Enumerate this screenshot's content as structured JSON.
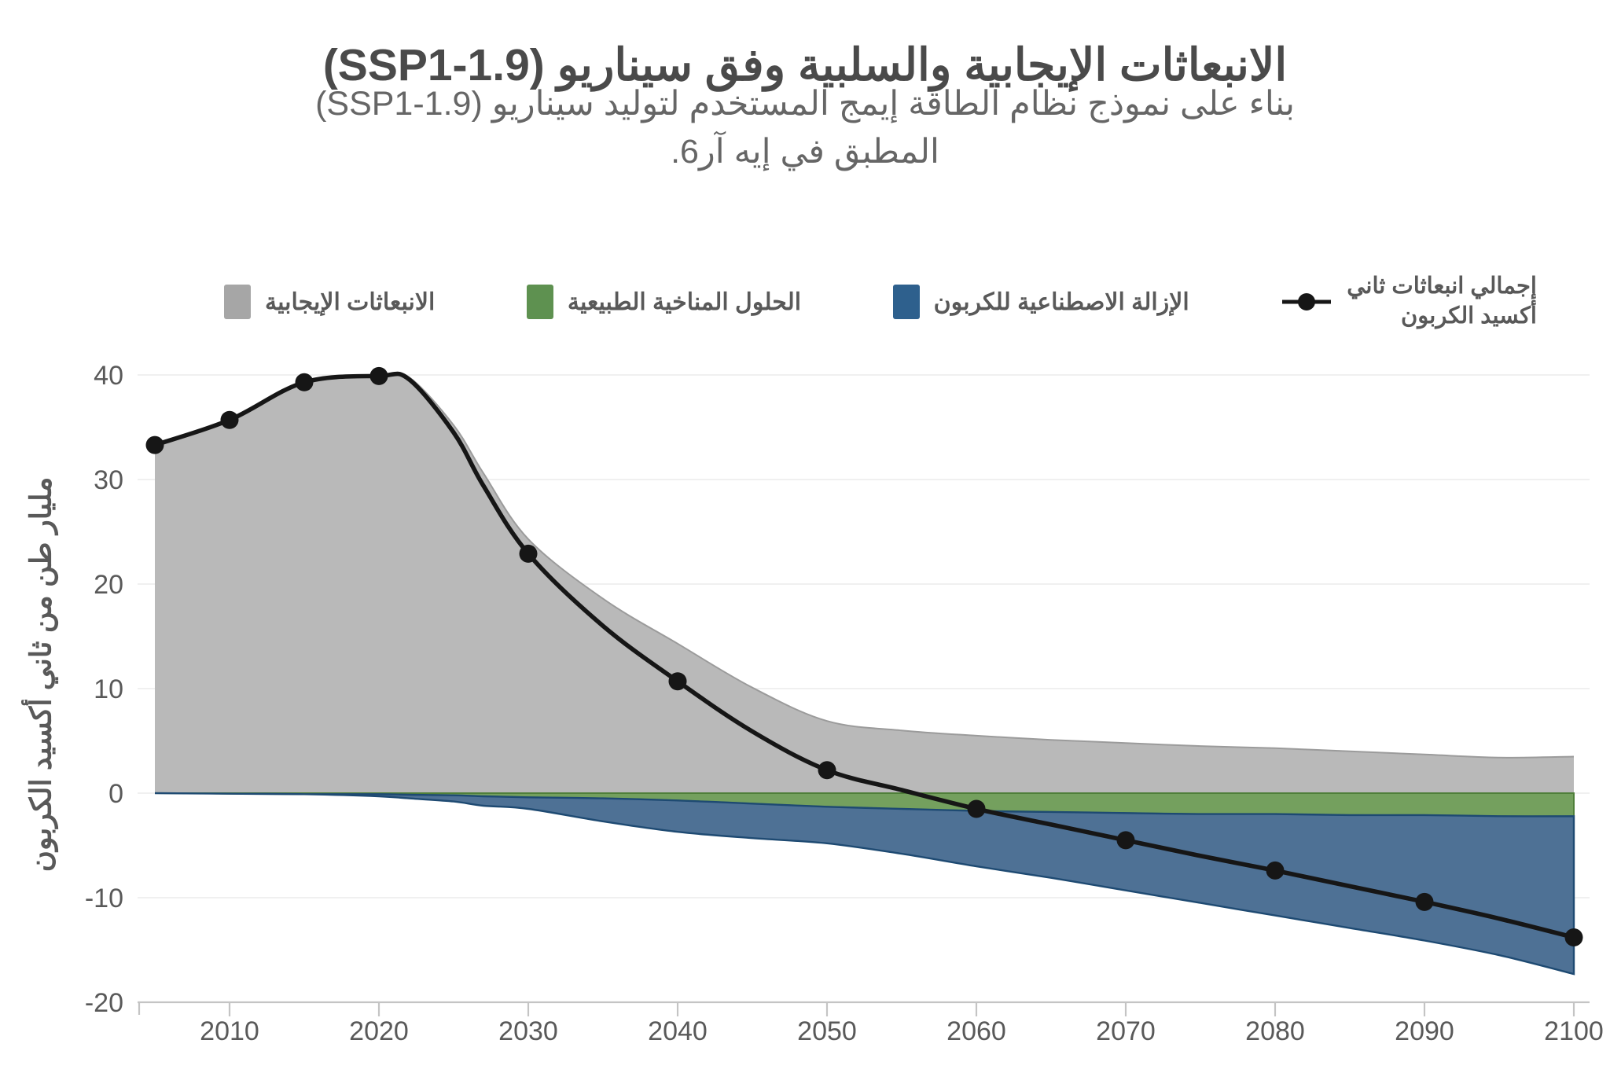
{
  "header": {
    "title": "الانبعاثات الإيجابية والسلبية وفق سيناريو (SSP1-1.9)",
    "subtitle_line1": "بناء على نموذج نظام الطاقة إيمج المستخدم لتوليد سيناريو (SSP1-1.9)",
    "subtitle_line2": "المطبق في إيه آر6."
  },
  "legend": {
    "total": {
      "label_line1": "إجمالي انبعاثات ثاني",
      "label_line2": "أكسيد الكربون",
      "marker_color": "#161616"
    },
    "items": [
      {
        "id": "artificial-carbon-removal",
        "label": "الإزالة الاصطناعية للكربون",
        "swatch": "#2e608d"
      },
      {
        "id": "natural-climate-solutions",
        "label": "الحلول المناخية الطبيعية",
        "swatch": "#5e9150"
      },
      {
        "id": "positive-emissions",
        "label": "الانبعاثات الإيجابية",
        "swatch": "#a6a6a6"
      }
    ]
  },
  "colors": {
    "title_text": "#4a4a4a",
    "axis_text": "#595959",
    "gridline": "#ebebeb",
    "baseline": "#c4c4c4",
    "area_gray_fill": "#b9b9b9",
    "area_gray_edge": "#9b9b9b",
    "area_green_fill": "#74a05e",
    "area_green_edge": "#4f7f3a",
    "area_blue_fill": "#4e7195",
    "area_blue_edge": "#1e4a72",
    "net_line": "#161616"
  },
  "chart_data": {
    "type": "area",
    "title": "الانبعاثات الإيجابية والسلبية وفق سيناريو (SSP1-1.9)",
    "xlabel": "",
    "ylabel": "مليار طن من ثاني أكسيد الكربون",
    "xlim": [
      2005,
      2100
    ],
    "ylim": [
      -20,
      40
    ],
    "x_ticks": [
      2010,
      2020,
      2030,
      2040,
      2050,
      2060,
      2070,
      2080,
      2090,
      2100
    ],
    "y_ticks": [
      -20,
      -10,
      0,
      10,
      20,
      30,
      40
    ],
    "grid": "horizontal",
    "legend_position": "top",
    "x": [
      2005,
      2010,
      2015,
      2020,
      2022,
      2025,
      2027,
      2030,
      2035,
      2040,
      2045,
      2050,
      2055,
      2060,
      2065,
      2070,
      2075,
      2080,
      2085,
      2090,
      2095,
      2100
    ],
    "series": [
      {
        "name": "الانبعاثات الإيجابية",
        "role": "positive-emissions",
        "type": "area",
        "baseline": 0,
        "values": [
          33.3,
          35.7,
          39.3,
          40.0,
          39.8,
          35.2,
          30.6,
          24.3,
          18.6,
          14.3,
          10.1,
          6.9,
          6.0,
          5.5,
          5.1,
          4.8,
          4.5,
          4.3,
          4.0,
          3.7,
          3.4,
          3.5
        ]
      },
      {
        "name": "الحلول المناخية الطبيعية",
        "role": "natural-climate-solutions",
        "type": "area",
        "baseline": 0,
        "values": [
          0,
          -0.05,
          -0.1,
          -0.1,
          -0.15,
          -0.2,
          -0.3,
          -0.4,
          -0.5,
          -0.7,
          -1.0,
          -1.3,
          -1.5,
          -1.7,
          -1.8,
          -1.9,
          -2.0,
          -2.0,
          -2.1,
          -2.1,
          -2.2,
          -2.2
        ]
      },
      {
        "name": "الإزالة الاصطناعية للكربون",
        "role": "engineered-carbon-removal",
        "type": "area",
        "stacked_below": "natural-climate-solutions",
        "values": [
          0,
          -0.05,
          -0.1,
          -0.3,
          -0.5,
          -0.8,
          -1.2,
          -1.5,
          -2.7,
          -3.7,
          -4.3,
          -4.8,
          -5.8,
          -7.0,
          -8.1,
          -9.3,
          -10.5,
          -11.7,
          -12.9,
          -14.1,
          -15.5,
          -17.3
        ]
      },
      {
        "name": "إجمالي انبعاثات ثاني أكسيد الكربون",
        "role": "net-total",
        "type": "line",
        "values": [
          33.3,
          35.7,
          39.3,
          39.9,
          39.6,
          34.5,
          29.4,
          22.9,
          16.0,
          10.7,
          5.9,
          2.2,
          0.3,
          -1.5,
          -3.0,
          -4.5,
          -6.0,
          -7.4,
          -8.9,
          -10.4,
          -12.0,
          -13.8
        ],
        "marker_years": [
          2005,
          2010,
          2015,
          2020,
          2030,
          2040,
          2050,
          2060,
          2070,
          2080,
          2090,
          2100
        ],
        "marker_values": [
          33.3,
          35.7,
          39.3,
          39.9,
          22.9,
          10.7,
          2.2,
          -1.5,
          -4.5,
          -7.4,
          -10.4,
          -13.8
        ]
      }
    ]
  }
}
